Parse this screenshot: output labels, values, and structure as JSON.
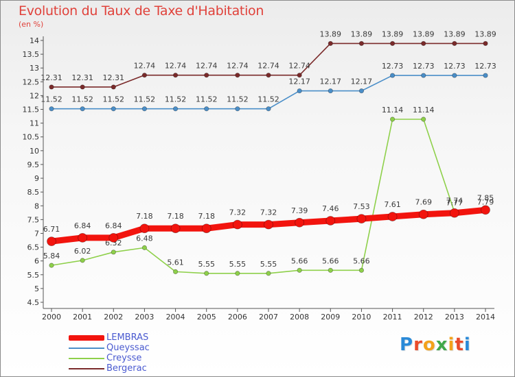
{
  "header": {
    "title": "Evolution du Taux de Taxe d'Habitation",
    "subtitle": "(en %)"
  },
  "logo": {
    "text": "Proxiti",
    "colors": [
      "#2a8ad8",
      "#e94b2a",
      "#f3a21b",
      "#41a84a",
      "#f3a21b",
      "#e94b2a",
      "#2a8ad8"
    ]
  },
  "chart_data": {
    "type": "line",
    "title": "Evolution du Taux de Taxe d'Habitation",
    "subtitle": "(en %)",
    "xlabel": "",
    "ylabel": "",
    "x": [
      "2000",
      "2001",
      "2002",
      "2003",
      "2004",
      "2005",
      "2006",
      "2007",
      "2008",
      "2009",
      "2010",
      "2011",
      "2012",
      "2013",
      "2014"
    ],
    "ylim": [
      4.5,
      14
    ],
    "yticks": [
      "4.5",
      "5",
      "5.5",
      "6",
      "6.5",
      "7",
      "7.5",
      "8",
      "8.5",
      "9",
      "9.5",
      "10",
      "10.5",
      "11",
      "11.5",
      "12",
      "12.5",
      "13",
      "13.5",
      "14"
    ],
    "grid": false,
    "legend_position": "bottom-left",
    "series": [
      {
        "name": "Bergerac",
        "color": "#7a2a2a",
        "values": [
          12.31,
          12.31,
          12.31,
          12.74,
          12.74,
          12.74,
          12.74,
          12.74,
          12.74,
          13.89,
          13.89,
          13.89,
          13.89,
          13.89,
          13.89
        ],
        "labels": [
          "12.31",
          "12.31",
          "12.31",
          "12.74",
          "12.74",
          "12.74",
          "12.74",
          "12.74",
          "12.74",
          "13.89",
          "13.89",
          "13.89",
          "13.89",
          "13.89",
          "13.89"
        ]
      },
      {
        "name": "Queyssac",
        "color": "#4a8ec8",
        "values": [
          11.52,
          11.52,
          11.52,
          11.52,
          11.52,
          11.52,
          11.52,
          11.52,
          12.17,
          12.17,
          12.17,
          12.73,
          12.73,
          12.73,
          12.73
        ],
        "labels": [
          "11.52",
          "11.52",
          "11.52",
          "11.52",
          "11.52",
          "11.52",
          "11.52",
          "11.52",
          "12.17",
          "12.17",
          "12.17",
          "12.73",
          "12.73",
          "12.73",
          "12.73"
        ]
      },
      {
        "name": "Creysse",
        "color": "#8ed04a",
        "values": [
          5.84,
          6.02,
          6.32,
          6.48,
          5.61,
          5.55,
          5.55,
          5.55,
          5.66,
          5.66,
          5.66,
          11.14,
          11.14,
          7.77,
          7.79
        ],
        "labels": [
          "5.84",
          "6.02",
          "6.32",
          "6.48",
          "5.61",
          "5.55",
          "5.55",
          "5.55",
          "5.66",
          "5.66",
          "5.66",
          "11.14",
          "11.14",
          "7.77",
          "7.79"
        ]
      },
      {
        "name": "LEMBRAS",
        "color": "#f2140e",
        "values": [
          6.71,
          6.84,
          6.84,
          7.18,
          7.18,
          7.18,
          7.32,
          7.32,
          7.39,
          7.46,
          7.53,
          7.61,
          7.69,
          7.74,
          7.85
        ],
        "labels": [
          "6.71",
          "6.84",
          "6.84",
          "7.18",
          "7.18",
          "7.18",
          "7.32",
          "7.32",
          "7.39",
          "7.46",
          "7.53",
          "7.61",
          "7.69",
          "7.74",
          "7.85"
        ]
      }
    ],
    "legend": [
      {
        "name": "LEMBRAS",
        "color": "#f2140e",
        "style": "thick"
      },
      {
        "name": "Queyssac",
        "color": "#4a8ec8",
        "style": "thin"
      },
      {
        "name": "Creysse",
        "color": "#8ed04a",
        "style": "thin"
      },
      {
        "name": "Bergerac",
        "color": "#7a2a2a",
        "style": "thin"
      }
    ]
  }
}
